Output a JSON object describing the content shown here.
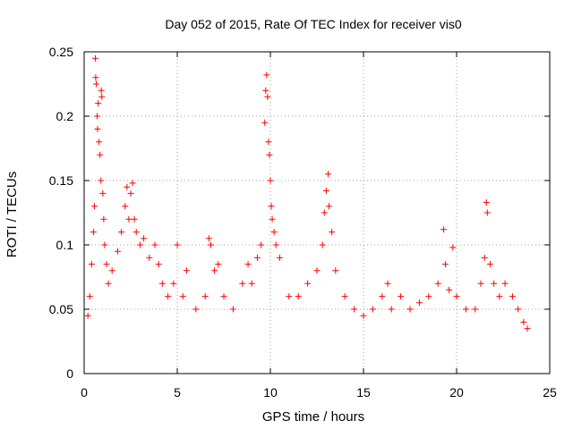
{
  "chart_data": {
    "type": "scatter",
    "title": "Day 052 of 2015, Rate Of TEC Index for receiver vis0",
    "xlabel": "GPS time / hours",
    "ylabel": "ROTI / TECUs",
    "xlim": [
      0,
      25
    ],
    "ylim": [
      0,
      0.25
    ],
    "x_ticks": [
      0,
      5,
      10,
      15,
      20,
      25
    ],
    "x_tick_labels": [
      "0",
      "5",
      "10",
      "15",
      "20",
      "25"
    ],
    "y_ticks": [
      0,
      0.05,
      0.1,
      0.15,
      0.2,
      0.25
    ],
    "y_tick_labels": [
      "0",
      "0.05",
      "0.1",
      "0.15",
      "0.2",
      "0.25"
    ],
    "grid": true,
    "marker": "plus",
    "color": "#ff0000",
    "series": [
      {
        "name": "ROTI",
        "points": [
          [
            0.2,
            0.045
          ],
          [
            0.3,
            0.06
          ],
          [
            0.4,
            0.085
          ],
          [
            0.5,
            0.11
          ],
          [
            0.55,
            0.13
          ],
          [
            0.6,
            0.245
          ],
          [
            0.62,
            0.23
          ],
          [
            0.65,
            0.225
          ],
          [
            0.7,
            0.2
          ],
          [
            0.72,
            0.19
          ],
          [
            0.75,
            0.21
          ],
          [
            0.8,
            0.18
          ],
          [
            0.85,
            0.17
          ],
          [
            0.9,
            0.15
          ],
          [
            0.92,
            0.22
          ],
          [
            0.95,
            0.215
          ],
          [
            1.0,
            0.14
          ],
          [
            1.05,
            0.12
          ],
          [
            1.1,
            0.1
          ],
          [
            1.2,
            0.085
          ],
          [
            1.3,
            0.07
          ],
          [
            1.5,
            0.08
          ],
          [
            1.8,
            0.095
          ],
          [
            2.0,
            0.11
          ],
          [
            2.2,
            0.13
          ],
          [
            2.3,
            0.145
          ],
          [
            2.4,
            0.12
          ],
          [
            2.5,
            0.14
          ],
          [
            2.6,
            0.148
          ],
          [
            2.7,
            0.12
          ],
          [
            2.8,
            0.11
          ],
          [
            3.0,
            0.1
          ],
          [
            3.2,
            0.105
          ],
          [
            3.5,
            0.09
          ],
          [
            3.8,
            0.1
          ],
          [
            4.0,
            0.085
          ],
          [
            4.2,
            0.07
          ],
          [
            4.5,
            0.06
          ],
          [
            4.8,
            0.07
          ],
          [
            5.0,
            0.1
          ],
          [
            5.3,
            0.06
          ],
          [
            5.5,
            0.08
          ],
          [
            6.0,
            0.05
          ],
          [
            6.5,
            0.06
          ],
          [
            6.7,
            0.105
          ],
          [
            6.8,
            0.1
          ],
          [
            7.0,
            0.08
          ],
          [
            7.2,
            0.085
          ],
          [
            7.5,
            0.06
          ],
          [
            8.0,
            0.05
          ],
          [
            8.5,
            0.07
          ],
          [
            8.8,
            0.085
          ],
          [
            9.0,
            0.07
          ],
          [
            9.3,
            0.09
          ],
          [
            9.5,
            0.1
          ],
          [
            9.7,
            0.195
          ],
          [
            9.75,
            0.22
          ],
          [
            9.8,
            0.232
          ],
          [
            9.85,
            0.215
          ],
          [
            9.9,
            0.18
          ],
          [
            9.95,
            0.17
          ],
          [
            10.0,
            0.15
          ],
          [
            10.05,
            0.13
          ],
          [
            10.1,
            0.12
          ],
          [
            10.2,
            0.11
          ],
          [
            10.3,
            0.1
          ],
          [
            10.5,
            0.09
          ],
          [
            11.0,
            0.06
          ],
          [
            11.5,
            0.06
          ],
          [
            12.0,
            0.07
          ],
          [
            12.5,
            0.08
          ],
          [
            12.8,
            0.1
          ],
          [
            12.9,
            0.125
          ],
          [
            13.0,
            0.142
          ],
          [
            13.1,
            0.155
          ],
          [
            13.15,
            0.13
          ],
          [
            13.3,
            0.11
          ],
          [
            13.5,
            0.08
          ],
          [
            14.0,
            0.06
          ],
          [
            14.5,
            0.05
          ],
          [
            15.0,
            0.045
          ],
          [
            15.5,
            0.05
          ],
          [
            16.0,
            0.06
          ],
          [
            16.3,
            0.07
          ],
          [
            16.5,
            0.05
          ],
          [
            17.0,
            0.06
          ],
          [
            17.5,
            0.05
          ],
          [
            18.0,
            0.055
          ],
          [
            18.5,
            0.06
          ],
          [
            19.0,
            0.07
          ],
          [
            19.3,
            0.112
          ],
          [
            19.4,
            0.085
          ],
          [
            19.6,
            0.065
          ],
          [
            19.8,
            0.098
          ],
          [
            20.0,
            0.06
          ],
          [
            20.5,
            0.05
          ],
          [
            21.0,
            0.05
          ],
          [
            21.3,
            0.07
          ],
          [
            21.5,
            0.09
          ],
          [
            21.6,
            0.133
          ],
          [
            21.65,
            0.125
          ],
          [
            21.8,
            0.085
          ],
          [
            22.0,
            0.07
          ],
          [
            22.3,
            0.06
          ],
          [
            22.6,
            0.07
          ],
          [
            23.0,
            0.06
          ],
          [
            23.3,
            0.05
          ],
          [
            23.6,
            0.04
          ],
          [
            23.8,
            0.035
          ]
        ]
      }
    ]
  }
}
